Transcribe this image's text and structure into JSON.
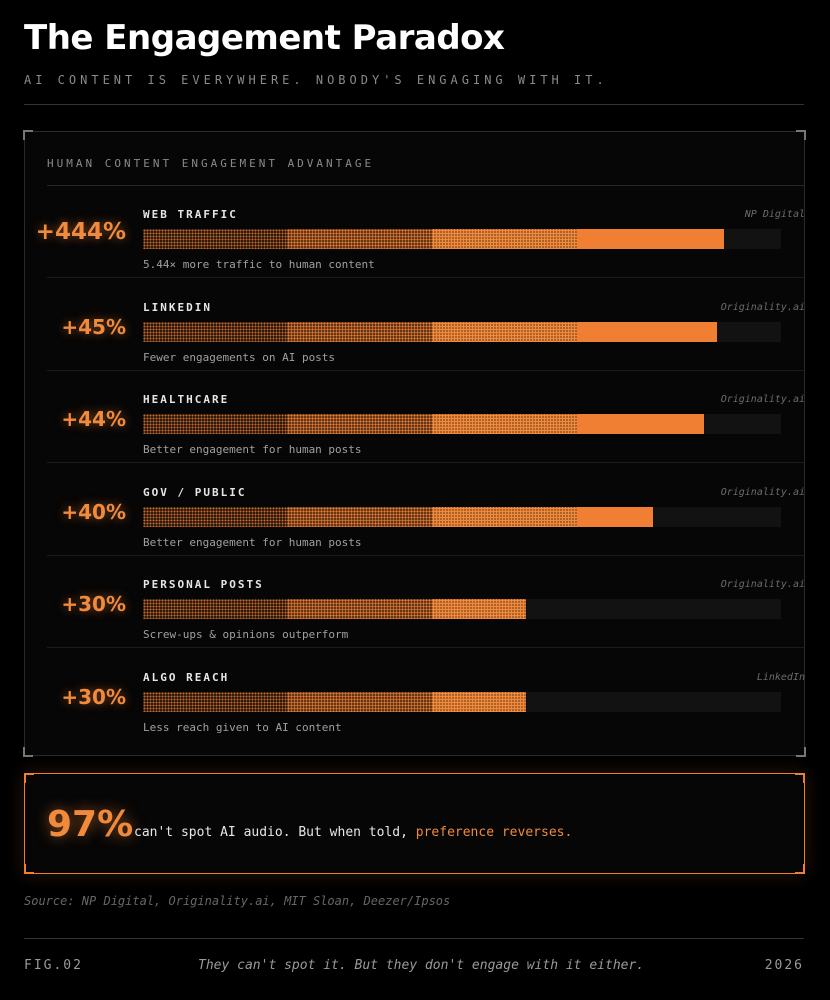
{
  "header": {
    "title": "The Engagement Paradox",
    "subtitle": "AI CONTENT IS EVERYWHERE. NOBODY'S ENGAGING WITH IT."
  },
  "colors": {
    "accent": "#f07f34",
    "background": "#000000",
    "track": "#121212"
  },
  "chart_data": {
    "type": "bar",
    "orientation": "horizontal",
    "title": "HUMAN CONTENT ENGAGEMENT ADVANTAGE",
    "categories": [
      "WEB TRAFFIC",
      "LINKEDIN",
      "HEALTHCARE",
      "GOV / PUBLIC",
      "PERSONAL POSTS",
      "ALGO REACH"
    ],
    "value_labels": [
      "+444%",
      "+45%",
      "+44%",
      "+40%",
      "+30%",
      "+30%"
    ],
    "bar_fill_fraction": [
      0.91,
      0.9,
      0.88,
      0.8,
      0.6,
      0.6
    ],
    "sources": [
      "NP Digital",
      "Originality.ai",
      "Originality.ai",
      "Originality.ai",
      "Originality.ai",
      "LinkedIn"
    ],
    "descriptions": [
      "5.44× more traffic to human content",
      "Fewer engagements on AI posts",
      "Better engagement for human posts",
      "Better engagement for human posts",
      "Screw-ups & opinions outperform",
      "Less reach given to AI content"
    ],
    "grid": false,
    "legend": "none"
  },
  "callout": {
    "value": "97%",
    "text": "can't spot AI audio. But when told, ",
    "highlight": "preference reverses."
  },
  "footer": {
    "sources": "Source: NP Digital, Originality.ai, MIT Sloan, Deezer/Ipsos",
    "fig": "FIG.02",
    "tagline": "They can't spot it. But they don't engage with it either.",
    "year": "2026"
  }
}
